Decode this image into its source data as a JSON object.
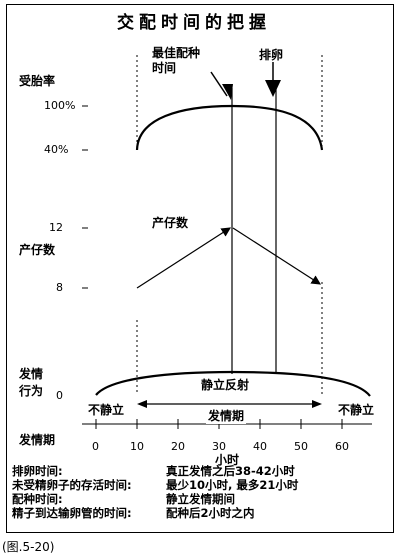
{
  "title": "交配时间的把握",
  "callouts": {
    "best_mating": "最佳配种时间",
    "ovulation": "排卵",
    "litter": "产仔数",
    "standing_reflex": "静立反射"
  },
  "y_labels": {
    "conception_rate": "受胎率",
    "litter_size": "产仔数",
    "estrus_behavior": "发情行为",
    "estrus_period": "发情期"
  },
  "y_ticks": {
    "rate_100": "100%",
    "rate_40": "40%",
    "litter_12": "12",
    "litter_8": "8",
    "behavior_0": "0"
  },
  "x_axis": {
    "label": "小时",
    "ticks": [
      "0",
      "10",
      "20",
      "30",
      "40",
      "50",
      "60"
    ]
  },
  "estrus_bar": {
    "left": "不静立",
    "right": "不静立",
    "center": "发情期"
  },
  "notes": [
    {
      "term": "排卵时间:",
      "desc": "真正发情之后38-42小时"
    },
    {
      "term": "未受精卵子的存活时间:",
      "desc": "最少10小时, 最多21小时"
    },
    {
      "term": "配种时间:",
      "desc": "静立发情期间"
    },
    {
      "term": "精子到达输卵管的时间:",
      "desc": "配种后2小时之内"
    }
  ],
  "caption": "(图.5-20)"
}
